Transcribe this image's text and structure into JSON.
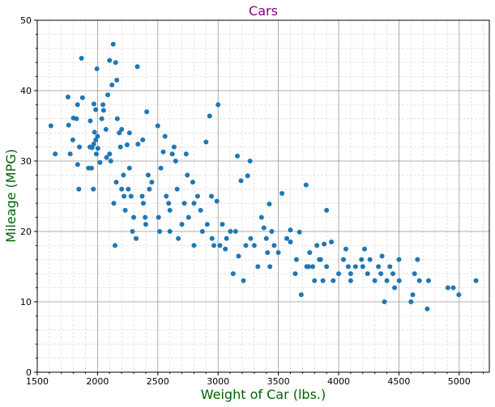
{
  "chart_data": {
    "type": "scatter",
    "title": "Cars",
    "x_label": "Weight of Car (lbs.)",
    "y_label": "Mileage (MPG)",
    "color": "#1f77b4",
    "grid": true,
    "minor_grid": true,
    "xlim": [
      1500,
      5250
    ],
    "ylim": [
      0,
      50
    ],
    "xticks": [
      1500,
      2000,
      2500,
      3000,
      3500,
      4000,
      4500,
      5000
    ],
    "yticks": [
      0,
      10,
      20,
      30,
      40,
      50
    ],
    "xminorticks": [
      1600,
      1700,
      1800,
      1900,
      2100,
      2200,
      2300,
      2400,
      2600,
      2700,
      2800,
      2900,
      3100,
      3200,
      3300,
      3400,
      3600,
      3700,
      3800,
      3900,
      4100,
      4200,
      4300,
      4400,
      4600,
      4700,
      4800,
      4900,
      5100,
      5200
    ],
    "yminorticks": [
      2,
      4,
      6,
      8,
      12,
      14,
      16,
      18,
      22,
      24,
      26,
      28,
      32,
      34,
      36,
      38,
      42,
      44,
      46,
      48
    ],
    "x": [
      1613,
      1649,
      1755,
      1760,
      1773,
      1795,
      1800,
      1825,
      1834,
      1835,
      1845,
      1850,
      1867,
      1875,
      1925,
      1937,
      1940,
      1950,
      1955,
      1965,
      1968,
      1970,
      1975,
      1985,
      1990,
      1995,
      2000,
      2003,
      2020,
      2035,
      2045,
      2050,
      2070,
      2075,
      2085,
      2100,
      2110,
      2120,
      2130,
      2135,
      2145,
      2150,
      2155,
      2160,
      2164,
      2180,
      2190,
      2200,
      2215,
      2220,
      2230,
      2245,
      2255,
      2265,
      2278,
      2290,
      2300,
      2320,
      2330,
      2335,
      2370,
      2375,
      2380,
      2395,
      2400,
      2408,
      2420,
      2430,
      2450,
      2500,
      2506,
      2515,
      2525,
      2545,
      2560,
      2570,
      2590,
      2600,
      2620,
      2635,
      2648,
      2660,
      2670,
      2700,
      2720,
      2735,
      2745,
      2755,
      2790,
      2800,
      2830,
      2855,
      2870,
      2900,
      2910,
      2930,
      2945,
      2950,
      2965,
      2990,
      3000,
      3015,
      3035,
      3060,
      3070,
      3102,
      3125,
      3145,
      3160,
      3170,
      3190,
      3210,
      3230,
      3245,
      3265,
      3270,
      3300,
      3330,
      3360,
      3380,
      3410,
      3425,
      3430,
      3445,
      3465,
      3500,
      3530,
      3570,
      3600,
      3640,
      3650,
      3675,
      3690,
      3730,
      3735,
      3760,
      3785,
      3800,
      3820,
      3840,
      3870,
      3880,
      3900,
      3940,
      3955,
      4000,
      4040,
      4060,
      4080,
      4100,
      4140,
      4190,
      4215,
      4240,
      4260,
      4300,
      4330,
      4360,
      4380,
      4400,
      4425,
      4450,
      4464,
      4500,
      4502,
      4600,
      4615,
      4630,
      4654,
      4670,
      4735,
      4746,
      4906,
      4951,
      4997,
      5140,
      3900,
      3600,
      2800,
      2200,
      2100,
      1985,
      2265,
      2600,
      3400,
      4100,
      4200,
      3750,
      3850,
      4350
    ],
    "values": [
      35,
      31,
      39.1,
      35.1,
      31,
      33,
      36.1,
      36,
      38,
      29.5,
      26,
      32,
      44.6,
      39,
      29,
      32,
      35.7,
      29,
      31.9,
      26,
      32.4,
      38.1,
      34.1,
      37.3,
      31,
      43.1,
      33.5,
      31.8,
      29.8,
      36,
      38,
      37.2,
      34.5,
      30.5,
      39.4,
      44.3,
      30,
      40.8,
      46.6,
      24,
      18,
      44,
      27,
      41.5,
      36,
      34,
      32,
      26,
      28,
      25,
      23,
      32.3,
      26,
      34,
      25,
      20,
      22,
      19,
      43.4,
      32.4,
      25,
      33,
      24,
      22,
      21,
      37,
      28,
      26,
      27,
      35,
      22,
      20,
      29,
      31.3,
      33.5,
      25,
      24,
      23,
      31,
      32,
      30,
      26,
      19,
      21,
      24,
      31,
      28,
      22,
      27,
      24,
      25,
      23,
      20,
      32.7,
      21,
      36.4,
      25,
      19,
      18,
      24.3,
      38,
      18,
      21,
      17.5,
      19,
      20,
      14,
      20,
      30.7,
      16.5,
      27.2,
      13,
      18,
      27.9,
      30,
      19,
      18,
      15,
      22,
      20.5,
      17,
      23.9,
      15,
      20,
      18,
      17,
      25.4,
      19,
      18.5,
      14,
      16,
      19.9,
      11,
      26.6,
      15,
      17,
      15,
      13,
      18,
      16,
      13,
      18.2,
      15,
      18.5,
      13,
      14,
      16,
      17.5,
      15,
      13,
      15,
      16,
      17.5,
      14,
      16,
      13,
      15,
      16.5,
      10,
      13,
      15,
      14,
      12,
      16,
      13,
      10,
      11,
      14,
      16,
      13,
      9,
      13,
      12,
      12,
      11,
      13,
      23,
      20.2,
      18,
      34.5,
      31,
      33,
      29,
      20,
      19,
      14,
      15,
      15,
      16,
      14
    ]
  }
}
